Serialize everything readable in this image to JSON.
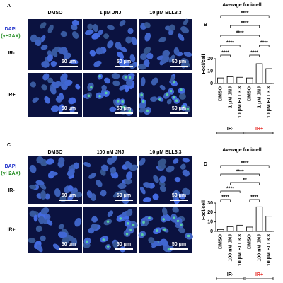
{
  "panels": [
    {
      "label": "A",
      "columns": [
        "DMSO",
        "1 μM JNJ",
        "10 μM BLL3.3"
      ],
      "stain": [
        "DAPI",
        "(γH2AX)"
      ],
      "rows": [
        "IR-",
        "IR+"
      ],
      "scale_bar": "50 μm"
    },
    {
      "label": "C",
      "columns": [
        "DMSO",
        "100 nM JNJ",
        "10 μM BLL3.3"
      ],
      "stain": [
        "DAPI",
        "(γH2AX)"
      ],
      "rows": [
        "IR-",
        "IR+"
      ],
      "scale_bar": "50 μm"
    }
  ],
  "chart_data": [
    {
      "panel": "B",
      "type": "bar",
      "title": "Average foci/cell",
      "y_label": "Foci/cell",
      "categories": [
        "DMSO",
        "1 μM JNJ",
        "10 μM BLL3.3",
        "DMSO",
        "1 μM JNJ",
        "10 μM BLL3.3"
      ],
      "values": [
        4.5,
        5.5,
        5,
        4.5,
        16,
        12
      ],
      "color": "#ffffff",
      "ylim": [
        0,
        20
      ],
      "yticks": [
        0,
        10,
        20
      ],
      "groups": [
        {
          "name": "IR-",
          "color": "#000000"
        },
        {
          "name": "IR+",
          "color": "#e8322d"
        }
      ],
      "significance": [
        "****",
        "****",
        "****",
        "****",
        "****",
        "****",
        "****"
      ]
    },
    {
      "panel": "D",
      "type": "bar",
      "title": "Average foci/cell",
      "y_label": "Foci/cell",
      "categories": [
        "DMSO",
        "100 nM JNJ",
        "10 μM BLL3.3",
        "DMSO",
        "100 nM JNJ",
        "10 μM BLL3.3"
      ],
      "values": [
        2,
        5,
        6.5,
        4.5,
        26,
        16
      ],
      "color": "#ffffff",
      "ylim": [
        0,
        30
      ],
      "yticks": [
        0,
        10,
        20,
        30
      ],
      "groups": [
        {
          "name": "IR-",
          "color": "#000000"
        },
        {
          "name": "IR+",
          "color": "#e8322d"
        }
      ],
      "significance": [
        "****",
        "****",
        "****",
        "**",
        "****",
        "****"
      ]
    }
  ]
}
